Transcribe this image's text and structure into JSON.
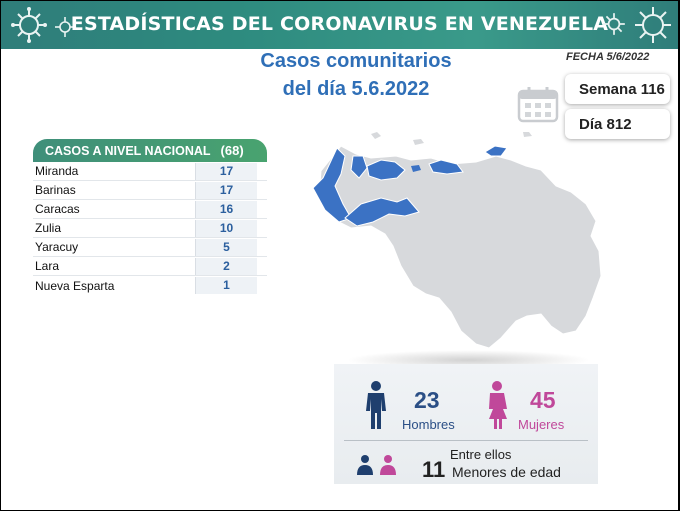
{
  "header": {
    "title": "ESTADÍSTICAS DEL CORONAVIRUS EN VENEZUELA"
  },
  "subtitle": {
    "line1": "Casos comunitarios",
    "line2": "del día 5.6.2022"
  },
  "date": "FECHA 5/6/2022",
  "week": "Semana 116",
  "day": "Día 812",
  "cases_table": {
    "header_label": "CASOS A NIVEL NACIONAL",
    "total": "(68)",
    "rows": [
      {
        "name": "Miranda",
        "value": "17"
      },
      {
        "name": "Barinas",
        "value": "17"
      },
      {
        "name": "Caracas",
        "value": "16"
      },
      {
        "name": "Zulia",
        "value": "10"
      },
      {
        "name": "Yaracuy",
        "value": "5"
      },
      {
        "name": "Lara",
        "value": "2"
      },
      {
        "name": "Nueva Esparta",
        "value": "1"
      }
    ]
  },
  "gender": {
    "men_count": "23",
    "men_label": "Hombres",
    "women_count": "45",
    "women_label": "Mujeres"
  },
  "minors": {
    "intro": "Entre ellos",
    "count": "11",
    "label": "Menores de edad"
  },
  "colors": {
    "banner": "#2e8b7f",
    "accent_blue": "#2f6fb7",
    "men": "#2b4f86",
    "women": "#c0489a",
    "map_highlight": "#3b72c4",
    "map_base": "#d7d9dc"
  },
  "icons": [
    "virus-icon",
    "calendar-icon",
    "man-icon",
    "woman-icon",
    "children-icon"
  ]
}
